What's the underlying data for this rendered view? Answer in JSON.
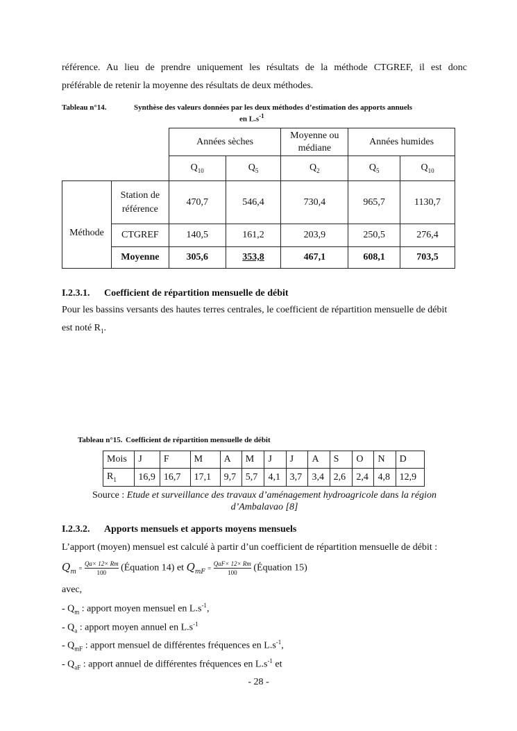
{
  "intro": [
    "référence. Au lieu de prendre uniquement les résultats de la méthode CTGREF, il est donc",
    "préférable de retenir la moyenne des résultats de deux méthodes."
  ],
  "table14": {
    "caption_num": "Tableau n°14.",
    "caption_text": "Synthèse des valeurs données par les deux méthodes d’estimation des apports annuels",
    "caption_unit": "en L.s",
    "caption_unit_sup": "-1",
    "groups": [
      "Années sèches",
      "Moyenne ou médiane",
      "Années humides"
    ],
    "subheaders": [
      {
        "q": "Q",
        "sub": "10"
      },
      {
        "q": "Q",
        "sub": "5"
      },
      {
        "q": "Q",
        "sub": "2"
      },
      {
        "q": "Q",
        "sub": "5"
      },
      {
        "q": "Q",
        "sub": "10"
      }
    ],
    "row_group": "Méthode",
    "rows": [
      {
        "label": "Station de référence",
        "values": [
          "470,7",
          "546,4",
          "730,4",
          "965,7",
          "1130,7"
        ]
      },
      {
        "label": "CTGREF",
        "values": [
          "140,5",
          "161,2",
          "203,9",
          "250,5",
          "276,4"
        ]
      },
      {
        "label": "Moyenne",
        "values": [
          "305,6",
          "353,8",
          "467,1",
          "608,1",
          "703,5"
        ]
      }
    ]
  },
  "section1": {
    "num": "I.2.3.1.",
    "title": "Coefficient de répartition mensuelle de débit",
    "text": [
      "Pour les bassins versants des hautes terres centrales, le coefficient de répartition mensuelle de débit",
      "est noté R"
    ],
    "text_sub": "1",
    "text_end": "."
  },
  "table15": {
    "caption_num": "Tableau n°15.",
    "caption_text": "Coefficient de répartition mensuelle de débit",
    "header_label": "Mois",
    "months": [
      "J",
      "F",
      "M",
      "A",
      "M",
      "J",
      "J",
      "A",
      "S",
      "O",
      "N",
      "D"
    ],
    "row_label": "R",
    "row_label_sub": "1",
    "values": [
      "16,9",
      "16,7",
      "17,1",
      "9,7",
      "5,7",
      "4,1",
      "3,7",
      "3,4",
      "2,6",
      "2,4",
      "4,8",
      "12,9"
    ],
    "source_label": "Source : ",
    "source_text": "Etude et surveillance des travaux d’aménagement hydroagricole dans la région",
    "source_text2": "d’Ambalavao [8]"
  },
  "section2": {
    "num": "I.2.3.2.",
    "title": "Apports mensuels et apports moyens mensuels",
    "text": "L’apport (moyen) mensuel est calculé à partir d’un coefficient de répartition mensuelle de débit :",
    "eq1_lhs": "Q",
    "eq1_lhs_sub": "m",
    "eq1_num": "Qa× 12× Rm",
    "eq_den": "100",
    "eq1_label": "(Équation 14) et",
    "eq2_lhs": "Q",
    "eq2_lhs_sub": "mF",
    "eq2_num": "QaF× 12× Rm",
    "eq2_label": "(Équation 15)",
    "avec": "avec,",
    "items": [
      {
        "pre": "- Q",
        "sub": "m",
        "text": " : apport moyen mensuel en L.s",
        "sup": "-1",
        "end": ","
      },
      {
        "pre": "- Q",
        "sub": "a",
        "text": " : apport moyen annuel en L.s",
        "sup": "-1",
        "end": ""
      },
      {
        "pre": "- Q",
        "sub": "mF",
        "text": " : apport mensuel de différentes fréquences en L.s",
        "sup": "-1",
        "end": ","
      },
      {
        "pre": "- Q",
        "sub": "aF",
        "text": " : apport annuel de différentes fréquences en L.s",
        "sup": "-1",
        "end": " et"
      }
    ]
  },
  "page_number": "- 28 -"
}
